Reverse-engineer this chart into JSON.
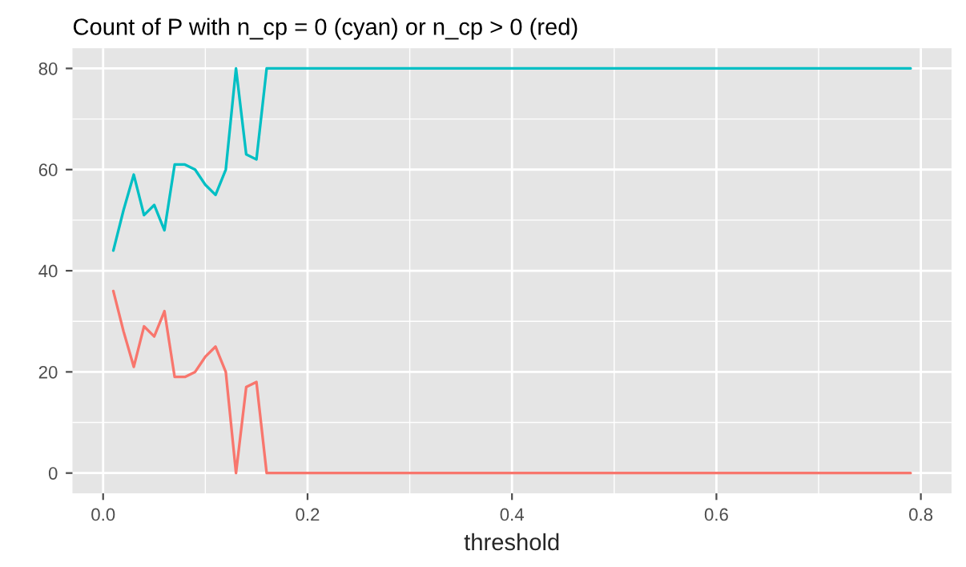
{
  "chart_data": {
    "type": "line",
    "title": "Count of P with n_cp = 0 (cyan) or n_cp > 0 (red)",
    "xlabel": "threshold",
    "x": [
      0.01,
      0.02,
      0.03,
      0.04,
      0.05,
      0.06,
      0.07,
      0.08,
      0.09,
      0.1,
      0.11,
      0.12,
      0.13,
      0.14,
      0.15,
      0.16,
      0.79
    ],
    "series": [
      {
        "color": "#00bfc4",
        "values": [
          44,
          52,
          59,
          51,
          53,
          48,
          61,
          61,
          60,
          57,
          55,
          60,
          80,
          63,
          62,
          80,
          80
        ]
      },
      {
        "color": "#f8766d",
        "values": [
          36,
          28,
          21,
          29,
          27,
          32,
          19,
          19,
          20,
          23,
          25,
          20,
          0,
          17,
          18,
          0,
          0
        ]
      }
    ],
    "xlim": [
      -0.03,
      0.83
    ],
    "ylim": [
      -4,
      84
    ],
    "xticks": [
      {
        "value": 0,
        "label": "0.0"
      },
      0.2,
      0.4,
      0.6,
      0.8
    ],
    "yticks": [
      0,
      20,
      40,
      60,
      80
    ],
    "grid": true
  }
}
